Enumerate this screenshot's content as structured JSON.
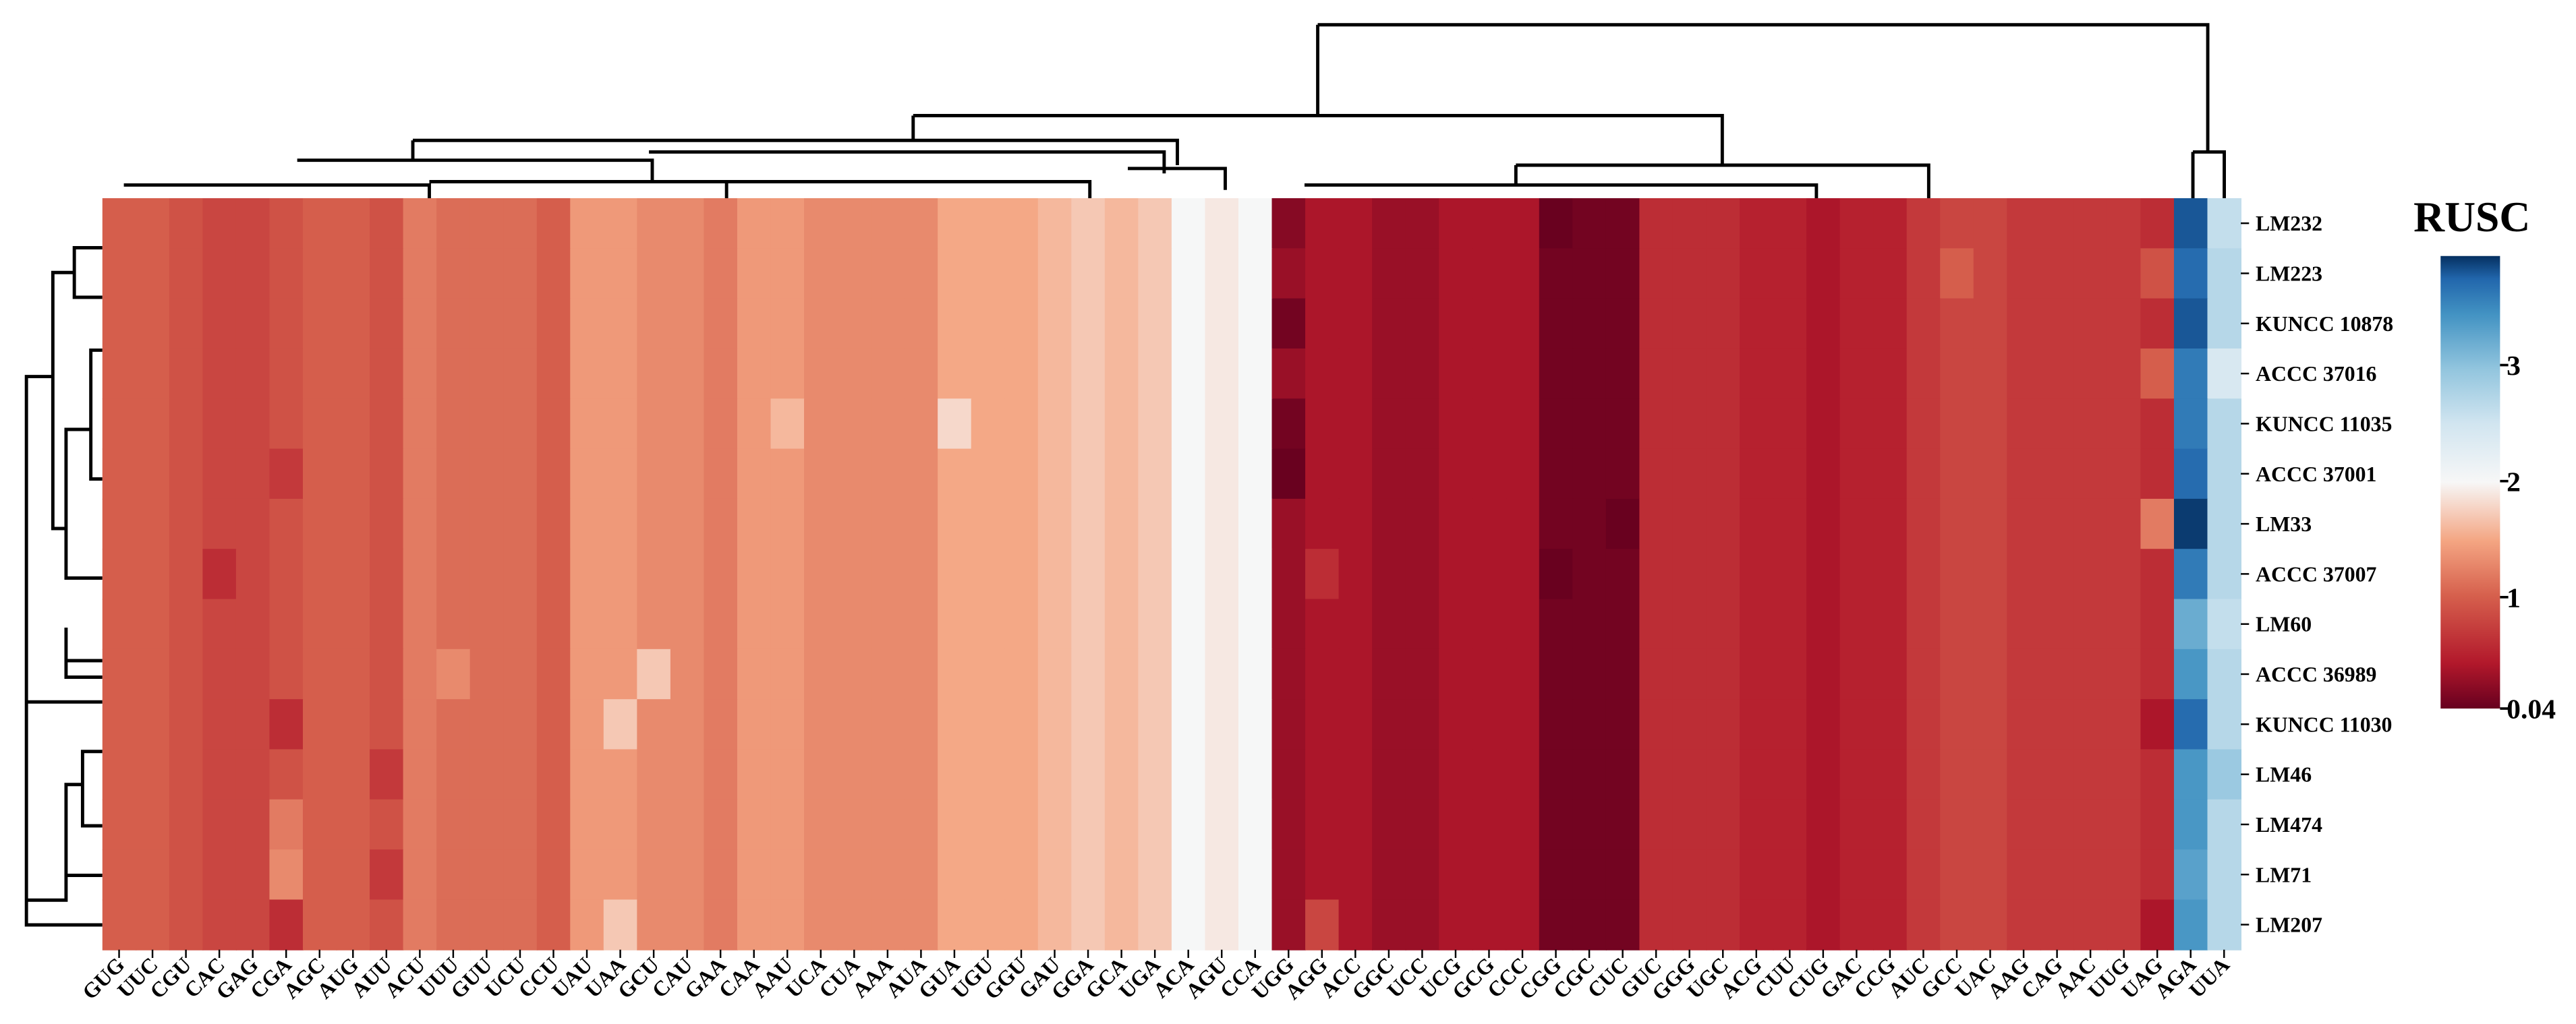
{
  "chart_data": {
    "type": "heatmap",
    "x": [
      "GUG",
      "UUC",
      "CGU",
      "CAC",
      "GAG",
      "CGA",
      "AGC",
      "AUG",
      "AUU",
      "ACU",
      "UUU",
      "GUU",
      "UCU",
      "CCU",
      "UAU",
      "UAA",
      "GCU",
      "CAU",
      "GAA",
      "CAA",
      "AAU",
      "UCA",
      "CUA",
      "AAA",
      "AUA",
      "GUA",
      "UGU",
      "GGU",
      "GAU",
      "GGA",
      "GCA",
      "UGA",
      "ACA",
      "AGU",
      "CCA",
      "UGG",
      "AGG",
      "ACC",
      "GGC",
      "UCC",
      "UCG",
      "GCG",
      "CCC",
      "CGG",
      "CGC",
      "CUC",
      "GUC",
      "GGG",
      "UGC",
      "ACG",
      "CUU",
      "CUG",
      "GAC",
      "CCG",
      "AUC",
      "GCC",
      "UAC",
      "AAG",
      "CAG",
      "AAC",
      "UUG",
      "UAG",
      "AGA",
      "UUA"
    ],
    "y": [
      "LM232",
      "LM223",
      "KUNCC 10878",
      "ACCC 37016",
      "KUNCC 11035",
      "ACCC 37001",
      "LM33",
      "ACCC 37007",
      "LM60",
      "ACCC 36989",
      "KUNCC 11030",
      "LM46",
      "LM474",
      "LM71",
      "LM207"
    ],
    "values": [
      [
        1.0,
        1.0,
        0.9,
        0.8,
        0.8,
        0.9,
        1.0,
        1.0,
        0.9,
        1.2,
        1.1,
        1.1,
        1.1,
        1.0,
        1.4,
        1.4,
        1.3,
        1.3,
        1.2,
        1.4,
        1.4,
        1.3,
        1.3,
        1.3,
        1.3,
        1.5,
        1.5,
        1.5,
        1.6,
        1.7,
        1.6,
        1.7,
        2.0,
        1.9,
        2.0,
        0.2,
        0.4,
        0.4,
        0.3,
        0.3,
        0.4,
        0.4,
        0.4,
        0.05,
        0.1,
        0.1,
        0.6,
        0.6,
        0.6,
        0.5,
        0.5,
        0.4,
        0.5,
        0.5,
        0.7,
        0.8,
        0.8,
        0.7,
        0.7,
        0.7,
        0.7,
        0.6,
        3.8,
        2.6
      ],
      [
        1.0,
        1.0,
        0.9,
        0.8,
        0.8,
        0.9,
        1.0,
        1.0,
        0.9,
        1.2,
        1.1,
        1.1,
        1.1,
        1.0,
        1.4,
        1.4,
        1.3,
        1.3,
        1.2,
        1.4,
        1.4,
        1.3,
        1.3,
        1.3,
        1.3,
        1.5,
        1.5,
        1.5,
        1.6,
        1.7,
        1.6,
        1.7,
        2.0,
        1.9,
        2.0,
        0.3,
        0.4,
        0.4,
        0.3,
        0.3,
        0.4,
        0.4,
        0.4,
        0.1,
        0.1,
        0.1,
        0.6,
        0.6,
        0.6,
        0.5,
        0.5,
        0.4,
        0.5,
        0.5,
        0.7,
        1.0,
        0.8,
        0.7,
        0.7,
        0.7,
        0.7,
        0.9,
        3.7,
        2.7
      ],
      [
        1.0,
        1.0,
        0.9,
        0.8,
        0.8,
        0.9,
        1.0,
        1.0,
        0.9,
        1.2,
        1.1,
        1.1,
        1.1,
        1.0,
        1.4,
        1.4,
        1.3,
        1.3,
        1.2,
        1.4,
        1.4,
        1.3,
        1.3,
        1.3,
        1.3,
        1.5,
        1.5,
        1.5,
        1.6,
        1.7,
        1.6,
        1.7,
        2.0,
        1.9,
        2.0,
        0.1,
        0.4,
        0.4,
        0.3,
        0.3,
        0.4,
        0.4,
        0.4,
        0.1,
        0.1,
        0.1,
        0.6,
        0.6,
        0.6,
        0.5,
        0.5,
        0.4,
        0.5,
        0.5,
        0.7,
        0.8,
        0.8,
        0.7,
        0.7,
        0.7,
        0.7,
        0.6,
        3.8,
        2.7
      ],
      [
        1.0,
        1.0,
        0.9,
        0.8,
        0.8,
        0.9,
        1.0,
        1.0,
        0.9,
        1.2,
        1.1,
        1.1,
        1.1,
        1.0,
        1.4,
        1.4,
        1.3,
        1.3,
        1.2,
        1.4,
        1.4,
        1.3,
        1.3,
        1.3,
        1.3,
        1.5,
        1.5,
        1.5,
        1.6,
        1.7,
        1.6,
        1.7,
        2.0,
        1.9,
        2.0,
        0.3,
        0.4,
        0.4,
        0.3,
        0.3,
        0.4,
        0.4,
        0.4,
        0.1,
        0.1,
        0.1,
        0.6,
        0.6,
        0.6,
        0.5,
        0.5,
        0.4,
        0.5,
        0.5,
        0.7,
        0.8,
        0.8,
        0.7,
        0.7,
        0.7,
        0.7,
        1.0,
        3.6,
        2.4
      ],
      [
        1.0,
        1.0,
        0.9,
        0.8,
        0.8,
        0.9,
        1.0,
        1.0,
        0.9,
        1.2,
        1.1,
        1.1,
        1.1,
        1.0,
        1.4,
        1.4,
        1.3,
        1.3,
        1.2,
        1.4,
        1.6,
        1.3,
        1.3,
        1.3,
        1.3,
        1.8,
        1.5,
        1.5,
        1.6,
        1.7,
        1.6,
        1.7,
        2.0,
        1.9,
        2.0,
        0.1,
        0.4,
        0.4,
        0.3,
        0.3,
        0.4,
        0.4,
        0.4,
        0.1,
        0.1,
        0.1,
        0.6,
        0.6,
        0.6,
        0.5,
        0.5,
        0.4,
        0.5,
        0.5,
        0.7,
        0.8,
        0.8,
        0.7,
        0.7,
        0.7,
        0.7,
        0.6,
        3.6,
        2.7
      ],
      [
        1.0,
        1.0,
        0.9,
        0.8,
        0.8,
        0.7,
        1.0,
        1.0,
        0.9,
        1.2,
        1.1,
        1.1,
        1.1,
        1.0,
        1.4,
        1.4,
        1.3,
        1.3,
        1.2,
        1.4,
        1.4,
        1.3,
        1.3,
        1.3,
        1.3,
        1.5,
        1.5,
        1.5,
        1.6,
        1.7,
        1.6,
        1.7,
        2.0,
        1.9,
        2.0,
        0.05,
        0.4,
        0.4,
        0.3,
        0.3,
        0.4,
        0.4,
        0.4,
        0.1,
        0.1,
        0.1,
        0.6,
        0.6,
        0.6,
        0.5,
        0.5,
        0.4,
        0.5,
        0.5,
        0.7,
        0.8,
        0.8,
        0.7,
        0.7,
        0.7,
        0.7,
        0.6,
        3.7,
        2.7
      ],
      [
        1.0,
        1.0,
        0.9,
        0.8,
        0.8,
        0.9,
        1.0,
        1.0,
        0.9,
        1.2,
        1.1,
        1.1,
        1.1,
        1.0,
        1.4,
        1.4,
        1.3,
        1.3,
        1.2,
        1.4,
        1.4,
        1.3,
        1.3,
        1.3,
        1.3,
        1.5,
        1.5,
        1.5,
        1.6,
        1.7,
        1.6,
        1.7,
        2.0,
        1.9,
        2.0,
        0.3,
        0.4,
        0.4,
        0.3,
        0.3,
        0.4,
        0.4,
        0.4,
        0.1,
        0.1,
        0.05,
        0.6,
        0.6,
        0.6,
        0.5,
        0.5,
        0.4,
        0.5,
        0.5,
        0.7,
        0.8,
        0.8,
        0.7,
        0.7,
        0.7,
        0.7,
        1.2,
        3.9,
        2.7
      ],
      [
        1.0,
        1.0,
        0.9,
        0.6,
        0.8,
        0.9,
        1.0,
        1.0,
        0.9,
        1.2,
        1.1,
        1.1,
        1.1,
        1.0,
        1.4,
        1.4,
        1.3,
        1.3,
        1.2,
        1.4,
        1.4,
        1.3,
        1.3,
        1.3,
        1.3,
        1.5,
        1.5,
        1.5,
        1.6,
        1.7,
        1.6,
        1.7,
        2.0,
        1.9,
        2.0,
        0.3,
        0.6,
        0.4,
        0.3,
        0.3,
        0.4,
        0.4,
        0.4,
        0.05,
        0.1,
        0.1,
        0.6,
        0.6,
        0.6,
        0.5,
        0.5,
        0.4,
        0.5,
        0.5,
        0.7,
        0.8,
        0.8,
        0.7,
        0.7,
        0.7,
        0.7,
        0.6,
        3.6,
        2.7
      ],
      [
        1.0,
        1.0,
        0.9,
        0.8,
        0.8,
        0.9,
        1.0,
        1.0,
        0.9,
        1.2,
        1.1,
        1.1,
        1.1,
        1.0,
        1.4,
        1.4,
        1.3,
        1.3,
        1.2,
        1.4,
        1.4,
        1.3,
        1.3,
        1.3,
        1.3,
        1.5,
        1.5,
        1.5,
        1.6,
        1.7,
        1.6,
        1.7,
        2.0,
        1.9,
        2.0,
        0.3,
        0.4,
        0.4,
        0.3,
        0.3,
        0.4,
        0.4,
        0.4,
        0.1,
        0.1,
        0.1,
        0.6,
        0.6,
        0.6,
        0.5,
        0.5,
        0.4,
        0.5,
        0.5,
        0.7,
        0.8,
        0.8,
        0.7,
        0.7,
        0.7,
        0.7,
        0.6,
        3.2,
        2.6
      ],
      [
        1.0,
        1.0,
        0.9,
        0.8,
        0.8,
        0.9,
        1.0,
        1.0,
        0.9,
        1.2,
        1.3,
        1.1,
        1.1,
        1.0,
        1.4,
        1.4,
        1.7,
        1.3,
        1.2,
        1.4,
        1.4,
        1.3,
        1.3,
        1.3,
        1.3,
        1.5,
        1.5,
        1.5,
        1.6,
        1.7,
        1.6,
        1.7,
        2.0,
        1.9,
        2.0,
        0.3,
        0.4,
        0.4,
        0.3,
        0.3,
        0.4,
        0.4,
        0.4,
        0.1,
        0.1,
        0.1,
        0.6,
        0.6,
        0.6,
        0.5,
        0.5,
        0.4,
        0.5,
        0.5,
        0.7,
        0.8,
        0.8,
        0.7,
        0.7,
        0.7,
        0.7,
        0.6,
        3.4,
        2.7
      ],
      [
        1.0,
        1.0,
        0.9,
        0.8,
        0.8,
        0.6,
        1.0,
        1.0,
        0.9,
        1.2,
        1.1,
        1.1,
        1.1,
        1.0,
        1.4,
        1.7,
        1.3,
        1.3,
        1.2,
        1.4,
        1.4,
        1.3,
        1.3,
        1.3,
        1.3,
        1.5,
        1.5,
        1.5,
        1.6,
        1.7,
        1.6,
        1.7,
        2.0,
        1.9,
        2.0,
        0.3,
        0.4,
        0.4,
        0.3,
        0.3,
        0.4,
        0.4,
        0.4,
        0.1,
        0.1,
        0.1,
        0.6,
        0.6,
        0.6,
        0.5,
        0.5,
        0.4,
        0.5,
        0.5,
        0.7,
        0.8,
        0.8,
        0.7,
        0.7,
        0.7,
        0.7,
        0.4,
        3.7,
        2.7
      ],
      [
        1.0,
        1.0,
        0.9,
        0.8,
        0.8,
        0.9,
        1.0,
        1.0,
        0.7,
        1.2,
        1.1,
        1.1,
        1.1,
        1.0,
        1.4,
        1.4,
        1.3,
        1.3,
        1.2,
        1.4,
        1.4,
        1.3,
        1.3,
        1.3,
        1.3,
        1.5,
        1.5,
        1.5,
        1.6,
        1.7,
        1.6,
        1.7,
        2.0,
        1.9,
        2.0,
        0.3,
        0.4,
        0.4,
        0.3,
        0.3,
        0.4,
        0.4,
        0.4,
        0.1,
        0.1,
        0.1,
        0.6,
        0.6,
        0.6,
        0.5,
        0.5,
        0.4,
        0.5,
        0.5,
        0.7,
        0.8,
        0.8,
        0.7,
        0.7,
        0.7,
        0.7,
        0.6,
        3.4,
        2.9
      ],
      [
        1.0,
        1.0,
        0.9,
        0.8,
        0.8,
        1.2,
        1.0,
        1.0,
        0.9,
        1.2,
        1.1,
        1.1,
        1.1,
        1.0,
        1.4,
        1.4,
        1.3,
        1.3,
        1.2,
        1.4,
        1.4,
        1.3,
        1.3,
        1.3,
        1.3,
        1.5,
        1.5,
        1.5,
        1.6,
        1.7,
        1.6,
        1.7,
        2.0,
        1.9,
        2.0,
        0.3,
        0.4,
        0.4,
        0.3,
        0.3,
        0.4,
        0.4,
        0.4,
        0.1,
        0.1,
        0.1,
        0.6,
        0.6,
        0.6,
        0.5,
        0.5,
        0.4,
        0.5,
        0.5,
        0.7,
        0.8,
        0.8,
        0.7,
        0.7,
        0.7,
        0.7,
        0.6,
        3.4,
        2.7
      ],
      [
        1.0,
        1.0,
        0.9,
        0.8,
        0.8,
        1.3,
        1.0,
        1.0,
        0.7,
        1.2,
        1.1,
        1.1,
        1.1,
        1.0,
        1.4,
        1.4,
        1.3,
        1.3,
        1.2,
        1.4,
        1.4,
        1.3,
        1.3,
        1.3,
        1.3,
        1.5,
        1.5,
        1.5,
        1.6,
        1.7,
        1.6,
        1.7,
        2.0,
        1.9,
        2.0,
        0.3,
        0.4,
        0.4,
        0.3,
        0.3,
        0.4,
        0.4,
        0.4,
        0.1,
        0.1,
        0.1,
        0.6,
        0.6,
        0.6,
        0.5,
        0.5,
        0.4,
        0.5,
        0.5,
        0.7,
        0.8,
        0.8,
        0.7,
        0.7,
        0.7,
        0.7,
        0.6,
        3.3,
        2.7
      ],
      [
        1.0,
        1.0,
        0.9,
        0.8,
        0.8,
        0.6,
        1.0,
        1.0,
        0.9,
        1.2,
        1.1,
        1.1,
        1.1,
        1.0,
        1.4,
        1.7,
        1.3,
        1.3,
        1.2,
        1.4,
        1.4,
        1.3,
        1.3,
        1.3,
        1.3,
        1.5,
        1.5,
        1.5,
        1.6,
        1.7,
        1.6,
        1.7,
        2.0,
        1.9,
        2.0,
        0.3,
        0.8,
        0.4,
        0.3,
        0.3,
        0.4,
        0.4,
        0.4,
        0.1,
        0.1,
        0.1,
        0.6,
        0.6,
        0.6,
        0.5,
        0.5,
        0.4,
        0.5,
        0.5,
        0.7,
        0.8,
        0.8,
        0.7,
        0.7,
        0.7,
        0.7,
        0.4,
        3.4,
        2.7
      ]
    ],
    "colormap": "RdBu_r",
    "clim": [
      0.04,
      3.94
    ],
    "colorbar_title": "RUSC",
    "colorbar_ticks": [
      3,
      2,
      1,
      0.04
    ]
  }
}
